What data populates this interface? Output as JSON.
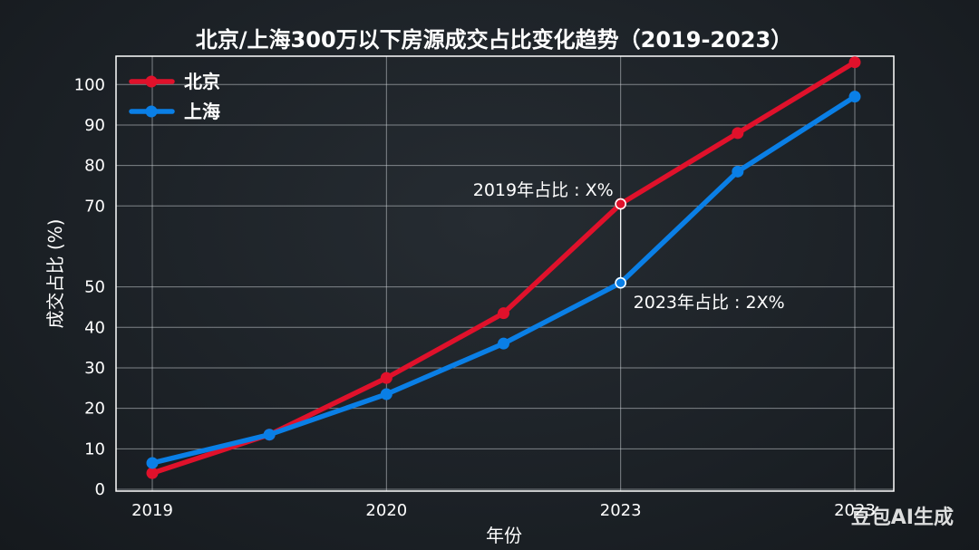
{
  "chart_data": {
    "type": "line",
    "title": "北京/上海300万以下房源成交占比变化趋势（2019-2023）",
    "xlabel": "年份",
    "ylabel": "成交占比 (%)",
    "x_ticks": [
      {
        "pos": 0,
        "label": "2019"
      },
      {
        "pos": 2,
        "label": "2020"
      },
      {
        "pos": 4,
        "label": "2023"
      },
      {
        "pos": 6,
        "label": "2023"
      }
    ],
    "xlim": [
      0,
      6
    ],
    "ylim": [
      0,
      107
    ],
    "y_ticks": [
      0,
      10,
      20,
      30,
      40,
      50,
      70,
      80,
      90,
      100
    ],
    "grid": true,
    "legend_position": "top-left",
    "series": [
      {
        "name": "北京",
        "color": "#e0112b",
        "x": [
          0,
          1,
          2,
          3,
          4,
          5,
          6
        ],
        "values": [
          4,
          13.5,
          27.5,
          43.5,
          70.5,
          88,
          105.5
        ]
      },
      {
        "name": "上海",
        "color": "#0a7fe6",
        "x": [
          0,
          1,
          2,
          3,
          4,
          5,
          6
        ],
        "values": [
          6.5,
          13.5,
          23.5,
          36,
          51,
          78.5,
          97
        ]
      }
    ],
    "annotations": [
      {
        "text": "2019年占比 : X%",
        "x": 4,
        "y": 70.5
      },
      {
        "text": "2023年占比 : 2X%",
        "x": 4,
        "y": 51
      }
    ]
  },
  "watermark": "豆包AI生成"
}
